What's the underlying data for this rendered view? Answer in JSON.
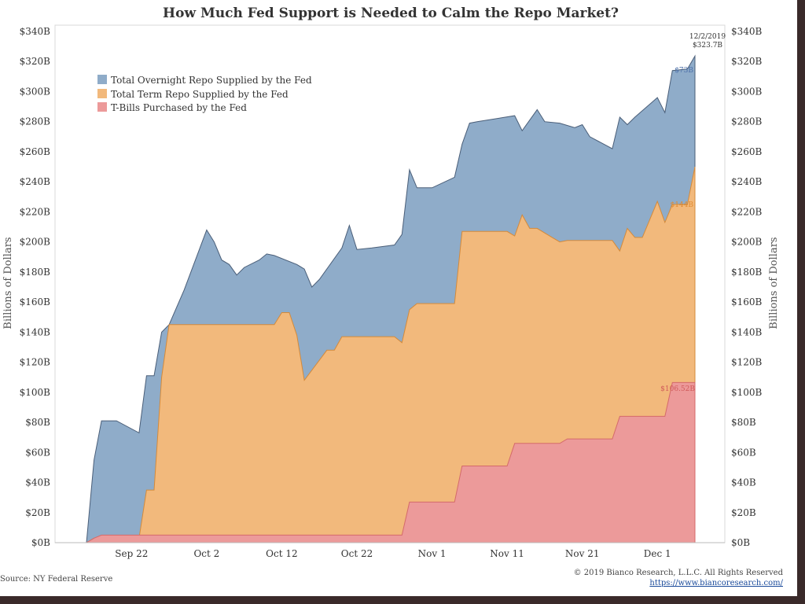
{
  "chart_data": {
    "type": "area",
    "title": "How Much Fed Support is Needed to Calm the Repo Market?",
    "ylabel_left": "Billions of Dollars",
    "ylabel_right": "Billions of Dollars",
    "stacked": true,
    "ylim": [
      0,
      340
    ],
    "xlim": [
      "2019-09-16",
      "2019-12-06"
    ],
    "yticks": [
      "$0B",
      "$20B",
      "$40B",
      "$60B",
      "$80B",
      "$100B",
      "$120B",
      "$140B",
      "$160B",
      "$180B",
      "$200B",
      "$220B",
      "$240B",
      "$260B",
      "$280B",
      "$300B",
      "$320B",
      "$340B"
    ],
    "ytick_values": [
      0,
      20,
      40,
      60,
      80,
      100,
      120,
      140,
      160,
      180,
      200,
      220,
      240,
      260,
      280,
      300,
      320,
      340
    ],
    "xticks": [
      "Sep 22",
      "Oct 2",
      "Oct 12",
      "Oct 22",
      "Nov 1",
      "Nov 11",
      "Nov 21",
      "Dec 1"
    ],
    "xtick_dates": [
      "2019-09-22",
      "2019-10-02",
      "2019-10-12",
      "2019-10-22",
      "2019-11-01",
      "2019-11-11",
      "2019-11-21",
      "2019-12-01"
    ],
    "grid": false,
    "legend_position": "top-left",
    "series": [
      {
        "name": "Total Overnight Repo Supplied by the Fed",
        "color": "#8facc9",
        "stroke": "#4a5e78",
        "total_points": [
          [
            "2019-09-16",
            0
          ],
          [
            "2019-09-17",
            55
          ],
          [
            "2019-09-18",
            81
          ],
          [
            "2019-09-19",
            81
          ],
          [
            "2019-09-20",
            81
          ],
          [
            "2019-09-23",
            73
          ],
          [
            "2019-09-24",
            111
          ],
          [
            "2019-09-25",
            111
          ],
          [
            "2019-09-26",
            140
          ],
          [
            "2019-09-27",
            145
          ],
          [
            "2019-09-29",
            168
          ],
          [
            "2019-10-02",
            208
          ],
          [
            "2019-10-03",
            200
          ],
          [
            "2019-10-04",
            188
          ],
          [
            "2019-10-05",
            185
          ],
          [
            "2019-10-06",
            178
          ],
          [
            "2019-10-07",
            183
          ],
          [
            "2019-10-09",
            188
          ],
          [
            "2019-10-10",
            192
          ],
          [
            "2019-10-11",
            191
          ],
          [
            "2019-10-14",
            185
          ],
          [
            "2019-10-15",
            182
          ],
          [
            "2019-10-16",
            170
          ],
          [
            "2019-10-17",
            175
          ],
          [
            "2019-10-20",
            196
          ],
          [
            "2019-10-21",
            211
          ],
          [
            "2019-10-22",
            195
          ],
          [
            "2019-10-24",
            196
          ],
          [
            "2019-10-27",
            198
          ],
          [
            "2019-10-28",
            205
          ],
          [
            "2019-10-29",
            248
          ],
          [
            "2019-10-30",
            236
          ],
          [
            "2019-10-31",
            236
          ],
          [
            "2019-11-01",
            236
          ],
          [
            "2019-11-04",
            243
          ],
          [
            "2019-11-05",
            265
          ],
          [
            "2019-11-06",
            279
          ],
          [
            "2019-11-07",
            280
          ],
          [
            "2019-11-12",
            284
          ],
          [
            "2019-11-13",
            274
          ],
          [
            "2019-11-15",
            288
          ],
          [
            "2019-11-16",
            280
          ],
          [
            "2019-11-18",
            279
          ],
          [
            "2019-11-20",
            276
          ],
          [
            "2019-11-21",
            278
          ],
          [
            "2019-11-22",
            270
          ],
          [
            "2019-11-25",
            262
          ],
          [
            "2019-11-26",
            283
          ],
          [
            "2019-11-27",
            278
          ],
          [
            "2019-11-28",
            283
          ],
          [
            "2019-12-01",
            296
          ],
          [
            "2019-12-02",
            286
          ],
          [
            "2019-12-03",
            314
          ],
          [
            "2019-12-05",
            315
          ],
          [
            "2019-12-06",
            323.7
          ]
        ]
      },
      {
        "name": "Total Term Repo Supplied by the Fed",
        "color": "#f2b97c",
        "stroke": "#d48a3a",
        "total_points": [
          [
            "2019-09-16",
            0
          ],
          [
            "2019-09-17",
            3
          ],
          [
            "2019-09-23",
            3
          ],
          [
            "2019-09-24",
            35
          ],
          [
            "2019-09-25",
            35
          ],
          [
            "2019-09-26",
            110
          ],
          [
            "2019-09-27",
            145
          ],
          [
            "2019-10-11",
            145
          ],
          [
            "2019-10-12",
            153
          ],
          [
            "2019-10-13",
            153
          ],
          [
            "2019-10-14",
            138
          ],
          [
            "2019-10-15",
            108
          ],
          [
            "2019-10-18",
            128
          ],
          [
            "2019-10-19",
            128
          ],
          [
            "2019-10-20",
            137
          ],
          [
            "2019-10-27",
            137
          ],
          [
            "2019-10-28",
            133
          ],
          [
            "2019-10-29",
            155
          ],
          [
            "2019-10-30",
            159
          ],
          [
            "2019-11-04",
            159
          ],
          [
            "2019-11-05",
            207
          ],
          [
            "2019-11-11",
            207
          ],
          [
            "2019-11-12",
            204
          ],
          [
            "2019-11-13",
            218
          ],
          [
            "2019-11-14",
            209
          ],
          [
            "2019-11-15",
            209
          ],
          [
            "2019-11-17",
            203
          ],
          [
            "2019-11-18",
            200
          ],
          [
            "2019-11-19",
            201
          ],
          [
            "2019-11-25",
            201
          ],
          [
            "2019-11-26",
            194
          ],
          [
            "2019-11-27",
            209
          ],
          [
            "2019-11-28",
            203
          ],
          [
            "2019-11-29",
            203
          ],
          [
            "2019-12-01",
            227
          ],
          [
            "2019-12-02",
            213
          ],
          [
            "2019-12-03",
            225
          ],
          [
            "2019-12-05",
            225
          ],
          [
            "2019-12-06",
            250
          ]
        ]
      },
      {
        "name": "T-Bills Purchased by the Fed",
        "color": "#ec9a9a",
        "stroke": "#d46a6a",
        "total_points": [
          [
            "2019-09-16",
            0
          ],
          [
            "2019-09-17",
            3
          ],
          [
            "2019-09-18",
            5
          ],
          [
            "2019-10-28",
            5
          ],
          [
            "2019-10-29",
            27
          ],
          [
            "2019-11-04",
            27
          ],
          [
            "2019-11-05",
            51
          ],
          [
            "2019-11-11",
            51
          ],
          [
            "2019-11-12",
            66
          ],
          [
            "2019-11-18",
            66
          ],
          [
            "2019-11-19",
            69
          ],
          [
            "2019-11-25",
            69
          ],
          [
            "2019-11-26",
            84
          ],
          [
            "2019-12-02",
            84
          ],
          [
            "2019-12-03",
            106.52
          ],
          [
            "2019-12-06",
            106.52
          ]
        ]
      }
    ],
    "annotations": {
      "date_label": "12/2/2019",
      "total_label": "$323.7B",
      "overnight_label": "$73B",
      "term_label": "$144B",
      "tbills_label": "$106.52B"
    }
  },
  "footer": {
    "source": "Source: NY Federal Reserve",
    "copyright": "© 2019 Bianco Research, L.L.C. All Rights Reserved",
    "url": "https://www.biancoresearch.com/"
  },
  "colors": {
    "overnight": "#8facc9",
    "term": "#f2b97c",
    "tbills": "#ec9a9a"
  }
}
